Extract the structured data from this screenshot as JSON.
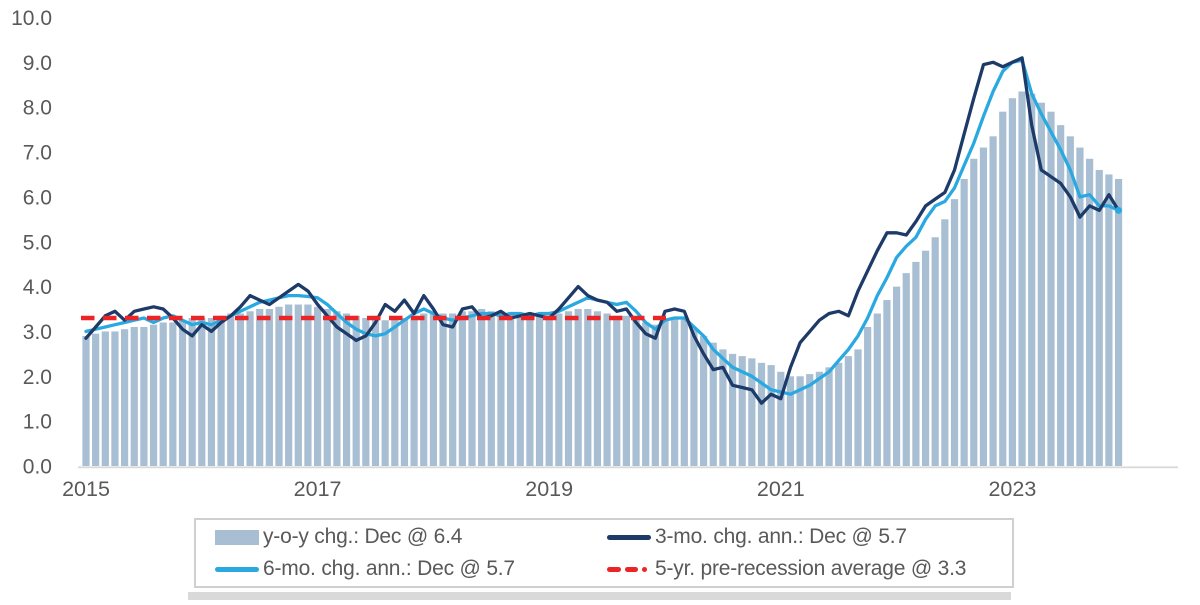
{
  "page": {
    "background": "#ffffff",
    "text_color": "#595959"
  },
  "colors": {
    "bar": "#a8bed3",
    "line_3mo": "#1d3a68",
    "line_6mo": "#2aa9e0",
    "pre_recession_avg": "#ec2426",
    "axis_line": "#d9d9d9",
    "axis_text": "#595959",
    "legend_border": "#d0d0d0",
    "bottom_strip": "#d9d9d9"
  },
  "legend": {
    "items": [
      {
        "label": "y-o-y chg.: Dec @ 6.4",
        "swatch": "bar",
        "color": "#a8bed3"
      },
      {
        "label": "3-mo. chg. ann.: Dec @ 5.7",
        "swatch": "line",
        "color": "#1d3a68"
      },
      {
        "label": "6-mo. chg. ann.: Dec @ 5.7",
        "swatch": "line",
        "color": "#2aa9e0"
      },
      {
        "label": "5-yr. pre-recession average @ 3.3",
        "swatch": "dash",
        "color": "#ec2426"
      }
    ]
  },
  "chart_data": {
    "type": "bar",
    "title": "",
    "xlabel": "",
    "ylabel": "",
    "ylim": [
      0,
      10
    ],
    "grid": false,
    "legend_position": "bottom",
    "x_start": "2015-01",
    "x_end": "2023-12",
    "n_months": 108,
    "y_ticks": [
      {
        "label": "0.0",
        "value": 0
      },
      {
        "label": "1.0",
        "value": 1
      },
      {
        "label": "2.0",
        "value": 2
      },
      {
        "label": "3.0",
        "value": 3
      },
      {
        "label": "4.0",
        "value": 4
      },
      {
        "label": "5.0",
        "value": 5
      },
      {
        "label": "6.0",
        "value": 6
      },
      {
        "label": "7.0",
        "value": 7
      },
      {
        "label": "8.0",
        "value": 8
      },
      {
        "label": "9.0",
        "value": 9
      },
      {
        "label": "10.0",
        "value": 10
      }
    ],
    "x_ticks": [
      {
        "label": "2015",
        "month": 0
      },
      {
        "label": "2017",
        "month": 24
      },
      {
        "label": "2019",
        "month": 48
      },
      {
        "label": "2021",
        "month": 72
      },
      {
        "label": "2023",
        "month": 96
      }
    ],
    "series": [
      {
        "name": "y-o-y chg.: Dec @ 6.4",
        "type": "bar",
        "color": "#a8bed3",
        "last_value": 6.4,
        "values": [
          2.9,
          2.95,
          3.0,
          3.0,
          3.05,
          3.1,
          3.1,
          3.15,
          3.2,
          3.2,
          3.25,
          3.3,
          3.3,
          3.3,
          3.35,
          3.4,
          3.4,
          3.45,
          3.5,
          3.5,
          3.55,
          3.6,
          3.6,
          3.6,
          3.55,
          3.5,
          3.45,
          3.4,
          3.35,
          3.3,
          3.3,
          3.25,
          3.3,
          3.3,
          3.35,
          3.4,
          3.4,
          3.4,
          3.4,
          3.45,
          3.45,
          3.5,
          3.45,
          3.45,
          3.4,
          3.4,
          3.4,
          3.35,
          3.35,
          3.4,
          3.45,
          3.5,
          3.5,
          3.45,
          3.4,
          3.35,
          3.35,
          3.3,
          3.2,
          3.15,
          3.25,
          3.3,
          3.3,
          3.05,
          2.9,
          2.75,
          2.6,
          2.5,
          2.45,
          2.4,
          2.3,
          2.25,
          2.1,
          2.0,
          2.0,
          2.05,
          2.1,
          2.2,
          2.3,
          2.45,
          2.6,
          3.1,
          3.4,
          3.7,
          4.0,
          4.3,
          4.55,
          4.8,
          5.1,
          5.5,
          5.95,
          6.4,
          6.85,
          7.1,
          7.35,
          7.9,
          8.2,
          8.35,
          8.3,
          8.1,
          7.9,
          7.6,
          7.35,
          7.1,
          6.85,
          6.6,
          6.5,
          6.4
        ]
      },
      {
        "name": "6-mo. chg. ann.: Dec @ 5.7",
        "type": "line",
        "color": "#2aa9e0",
        "last_value": 5.7,
        "end_marker": true,
        "values": [
          3.0,
          3.05,
          3.1,
          3.15,
          3.2,
          3.25,
          3.3,
          3.2,
          3.3,
          3.35,
          3.25,
          3.15,
          3.2,
          3.15,
          3.25,
          3.35,
          3.45,
          3.55,
          3.65,
          3.7,
          3.75,
          3.8,
          3.8,
          3.78,
          3.75,
          3.6,
          3.4,
          3.2,
          3.05,
          2.95,
          2.9,
          2.95,
          3.1,
          3.25,
          3.4,
          3.5,
          3.4,
          3.3,
          3.25,
          3.3,
          3.35,
          3.4,
          3.4,
          3.35,
          3.4,
          3.4,
          3.35,
          3.4,
          3.4,
          3.45,
          3.55,
          3.65,
          3.75,
          3.7,
          3.65,
          3.6,
          3.65,
          3.45,
          3.2,
          3.05,
          3.25,
          3.3,
          3.3,
          3.1,
          2.9,
          2.6,
          2.4,
          2.2,
          2.1,
          2.0,
          1.85,
          1.7,
          1.65,
          1.6,
          1.7,
          1.8,
          1.95,
          2.1,
          2.35,
          2.6,
          2.9,
          3.3,
          3.8,
          4.2,
          4.65,
          4.9,
          5.1,
          5.5,
          5.8,
          5.9,
          6.2,
          6.7,
          7.2,
          7.8,
          8.35,
          8.8,
          9.0,
          9.05,
          8.3,
          7.85,
          7.45,
          7.05,
          6.6,
          6.0,
          6.05,
          5.8,
          5.8,
          5.7
        ]
      },
      {
        "name": "3-mo. chg. ann.: Dec @ 5.7",
        "type": "line",
        "color": "#1d3a68",
        "last_value": 5.7,
        "values": [
          2.85,
          3.1,
          3.35,
          3.45,
          3.25,
          3.45,
          3.5,
          3.55,
          3.5,
          3.3,
          3.05,
          2.9,
          3.15,
          3.0,
          3.2,
          3.35,
          3.55,
          3.8,
          3.7,
          3.6,
          3.75,
          3.9,
          4.05,
          3.9,
          3.6,
          3.35,
          3.1,
          2.95,
          2.8,
          2.9,
          3.2,
          3.6,
          3.45,
          3.7,
          3.4,
          3.8,
          3.5,
          3.15,
          3.1,
          3.5,
          3.55,
          3.3,
          3.35,
          3.45,
          3.3,
          3.35,
          3.4,
          3.35,
          3.3,
          3.5,
          3.75,
          4.0,
          3.8,
          3.7,
          3.65,
          3.45,
          3.5,
          3.2,
          2.95,
          2.85,
          3.45,
          3.5,
          3.45,
          2.9,
          2.5,
          2.15,
          2.2,
          1.8,
          1.75,
          1.7,
          1.4,
          1.6,
          1.5,
          2.2,
          2.75,
          3.0,
          3.25,
          3.4,
          3.45,
          3.35,
          3.9,
          4.35,
          4.8,
          5.2,
          5.2,
          5.15,
          5.45,
          5.8,
          5.95,
          6.1,
          6.6,
          7.4,
          8.2,
          8.95,
          9.0,
          8.9,
          9.0,
          9.1,
          7.6,
          6.6,
          6.45,
          6.3,
          6.0,
          5.55,
          5.8,
          5.7,
          6.05,
          5.7
        ]
      },
      {
        "name": "5-yr. pre-recession average @ 3.3",
        "type": "dashed-hline",
        "color": "#ec2426",
        "value": 3.3,
        "span_months": [
          0,
          60
        ]
      }
    ]
  }
}
